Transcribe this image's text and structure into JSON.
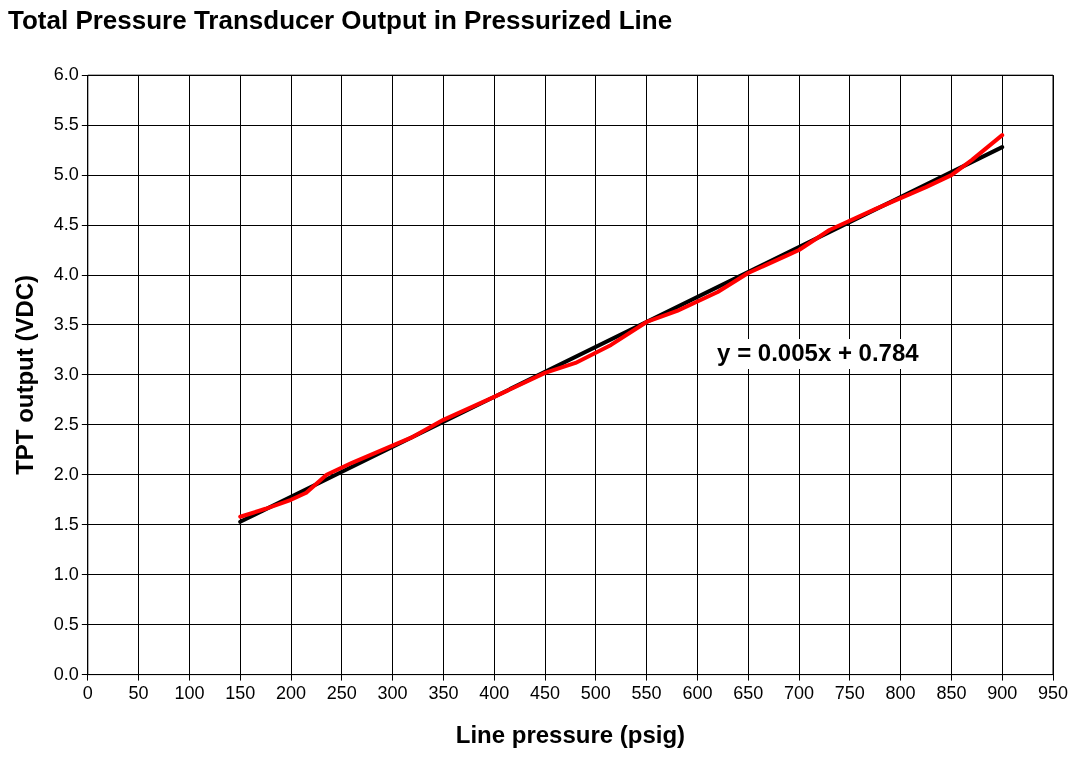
{
  "chart_data": {
    "type": "line",
    "title": "Total Pressure Transducer Output in Pressurized Line",
    "xlabel": "Line pressure (psig)",
    "ylabel": "TPT output (VDC)",
    "xlim": [
      0,
      950
    ],
    "xticks": [
      0,
      50,
      100,
      150,
      200,
      250,
      300,
      350,
      400,
      450,
      500,
      550,
      600,
      650,
      700,
      750,
      800,
      850,
      900,
      950
    ],
    "ylim": [
      0,
      6
    ],
    "yticks": [
      {
        "value": 0,
        "label": "0.0"
      },
      {
        "value": 0.5,
        "label": "0.5"
      },
      {
        "value": 1,
        "label": "1.0"
      },
      {
        "value": 1.5,
        "label": "1.5"
      },
      {
        "value": 2,
        "label": "2.0"
      },
      {
        "value": 2.5,
        "label": "2.5"
      },
      {
        "value": 3,
        "label": "3.0"
      },
      {
        "value": 3.5,
        "label": "3.5"
      },
      {
        "value": 4,
        "label": "4.0"
      },
      {
        "value": 4.5,
        "label": "4.5"
      },
      {
        "value": 5,
        "label": "5.0"
      },
      {
        "value": 5.5,
        "label": "5.5"
      },
      {
        "value": 6,
        "label": "6.0"
      }
    ],
    "grid": true,
    "legend": false,
    "marker": "none",
    "series": [
      {
        "color": "#ff0000",
        "x": [
          150,
          175,
          200,
          215,
          235,
          260,
          290,
          320,
          350,
          400,
          450,
          480,
          515,
          550,
          580,
          620,
          650,
          700,
          730,
          775,
          800,
          825,
          850,
          870,
          900
        ],
        "values": [
          1.58,
          1.66,
          1.75,
          1.82,
          2.0,
          2.12,
          2.25,
          2.38,
          2.55,
          2.78,
          3.02,
          3.12,
          3.3,
          3.53,
          3.64,
          3.83,
          4.02,
          4.25,
          4.45,
          4.66,
          4.77,
          4.88,
          5.0,
          5.15,
          5.4
        ]
      },
      {
        "color": "#000000",
        "x": [
          150,
          900
        ],
        "values": [
          1.53,
          5.28
        ]
      }
    ],
    "annotations": [
      "y = 0.005x + 0.784"
    ]
  }
}
